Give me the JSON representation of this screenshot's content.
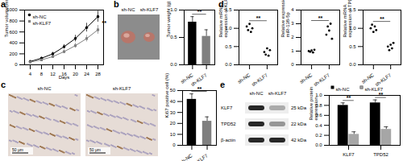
{
  "chart_data": [
    {
      "type": "line",
      "title": "a",
      "xlabel": "Days",
      "ylabel": "Tumor volume(mm³)",
      "x": [
        4,
        8,
        12,
        16,
        20,
        24,
        28
      ],
      "series": [
        {
          "name": "sh-NC",
          "color": "#000000",
          "marker": "circle",
          "values": [
            60,
            120,
            200,
            330,
            480,
            680,
            880
          ],
          "errors": [
            10,
            20,
            30,
            40,
            60,
            80,
            100
          ]
        },
        {
          "name": "sh-KLF7",
          "color": "#7f7f7f",
          "marker": "square",
          "values": [
            50,
            90,
            150,
            240,
            350,
            480,
            640
          ],
          "errors": [
            8,
            15,
            25,
            35,
            45,
            60,
            80
          ]
        }
      ],
      "xlim": [
        2,
        30
      ],
      "xticks": [
        4,
        8,
        12,
        16,
        20,
        24,
        28
      ],
      "ylim": [
        0,
        1000
      ],
      "yticks": [
        0,
        200,
        400,
        600,
        800,
        1000
      ],
      "legend": "upper left",
      "annotations": [
        "**"
      ]
    },
    {
      "type": "photo",
      "title": "b",
      "categories": [
        "sh-NC",
        "sh-KLF7"
      ]
    },
    {
      "type": "bar",
      "ylabel": "Tumor weight (g)",
      "categories": [
        "sh-NC",
        "sh-KLF7"
      ],
      "values": [
        0.78,
        0.52
      ],
      "errors": [
        0.1,
        0.12
      ],
      "colors": [
        "#000000",
        "#7f7f7f"
      ],
      "ylim": [
        0,
        1
      ],
      "yticks": [
        {
          "value": 0,
          "label": "0.0"
        },
        {
          "value": 0.5,
          "label": "0.5"
        },
        {
          "value": 1,
          "label": "1.0"
        }
      ],
      "annotations": [
        "**"
      ]
    },
    {
      "type": "dot",
      "title": "d",
      "ylabel": "Relative mRNA expression of KLF7",
      "categories": [
        "sh-NC",
        "sh-KLF7"
      ],
      "points": [
        [
          1.05,
          0.95,
          1.12,
          0.9,
          1.0
        ],
        [
          0.35,
          0.28,
          0.45,
          0.25,
          0.4
        ]
      ],
      "colors": [
        "#000000",
        "#000000"
      ],
      "ylim": [
        0,
        1.5
      ],
      "yticks": [
        {
          "value": 0,
          "label": "0.0"
        },
        {
          "value": 0.5,
          "label": "0.5"
        },
        {
          "value": 1,
          "label": "1.0"
        },
        {
          "value": 1.5,
          "label": "1.5"
        }
      ],
      "annotations": [
        "**"
      ]
    },
    {
      "type": "dot",
      "ylabel": "Relative expression of miR-138-5p",
      "categories": [
        "sh-NC",
        "sh-KLF7"
      ],
      "points": [
        [
          1.0,
          0.95,
          1.05,
          0.9,
          1.1
        ],
        [
          2.2,
          2.8,
          2.5,
          3.0,
          1.9
        ]
      ],
      "colors": [
        "#000000",
        "#000000"
      ],
      "ylim": [
        0,
        4
      ],
      "yticks": [
        0,
        1,
        2,
        3,
        4
      ],
      "annotations": [
        "**"
      ]
    },
    {
      "type": "dot",
      "ylabel": "Relative mRNA expression of TPD52",
      "categories": [
        "sh-NC",
        "sh-KLF7"
      ],
      "points": [
        [
          1.0,
          1.1,
          0.9,
          1.05,
          0.95
        ],
        [
          0.5,
          0.4,
          0.55,
          0.45,
          0.6
        ]
      ],
      "colors": [
        "#000000",
        "#000000"
      ],
      "ylim": [
        0,
        1.5
      ],
      "yticks": [
        {
          "value": 0,
          "label": "0.0"
        },
        {
          "value": 0.5,
          "label": "0.5"
        },
        {
          "value": 1,
          "label": "1.0"
        },
        {
          "value": 1.5,
          "label": "1.5"
        }
      ],
      "annotations": [
        "**"
      ]
    },
    {
      "type": "micrograph",
      "title": "c",
      "categories": [
        "sh-NC",
        "sh-KLF7"
      ],
      "scale_bar": "50 μm"
    },
    {
      "type": "bar",
      "ylabel": "Ki67 positive cell (%)",
      "categories": [
        "sh-NC",
        "sh-KLF7"
      ],
      "values": [
        42,
        22
      ],
      "errors": [
        5,
        4
      ],
      "colors": [
        "#000000",
        "#7f7f7f"
      ],
      "ylim": [
        0,
        50
      ],
      "yticks": [
        0,
        10,
        20,
        30,
        40,
        50
      ],
      "annotations": [
        "**"
      ]
    },
    {
      "type": "blot",
      "title": "e",
      "categories": [
        "sh-NC",
        "sh-KLF7"
      ],
      "bands": [
        {
          "name": "KLF7",
          "size": "25 kDa"
        },
        {
          "name": "TPD52",
          "size": "22 kDa"
        },
        {
          "name": "β-actin",
          "size": "42 kDa"
        }
      ]
    },
    {
      "type": "bar",
      "ylabel": "Relative protein expression",
      "categories": [
        "KLF7",
        "TPD52"
      ],
      "series": [
        {
          "name": "sh-NC",
          "color": "#000000",
          "values": [
            0.8,
            0.85
          ],
          "errors": [
            0.05,
            0.06
          ]
        },
        {
          "name": "sh-KLF7",
          "color": "#a6a6a6",
          "values": [
            0.22,
            0.32
          ],
          "errors": [
            0.05,
            0.05
          ]
        }
      ],
      "ylim": [
        0,
        1
      ],
      "yticks": [
        {
          "value": 0,
          "label": "0.0"
        },
        {
          "value": 0.2,
          "label": "0.2"
        },
        {
          "value": 0.4,
          "label": "0.4"
        },
        {
          "value": 0.6,
          "label": "0.6"
        },
        {
          "value": 0.8,
          "label": "0.8"
        },
        {
          "value": 1,
          "label": "1.0"
        }
      ],
      "legend": "upper right",
      "annotations": [
        "**",
        "**"
      ]
    }
  ]
}
